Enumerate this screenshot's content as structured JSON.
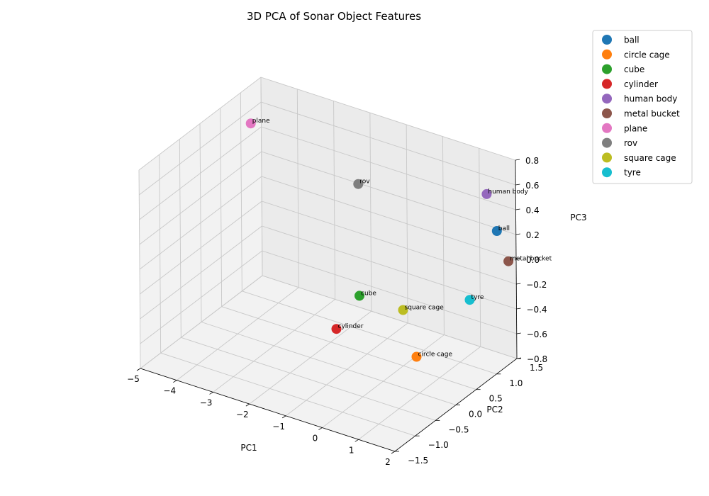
{
  "chart_data": {
    "type": "scatter",
    "projection": "3d",
    "title": "3D PCA of Sonar Object Features",
    "xlabel": "PC1",
    "ylabel": "PC2",
    "zlabel": "PC3",
    "xlim": [
      -5,
      2
    ],
    "ylim": [
      -1.5,
      1.5
    ],
    "zlim": [
      -0.8,
      0.8
    ],
    "xticks": [
      "−5",
      "−4",
      "−3",
      "−2",
      "−1",
      "0",
      "1",
      "2"
    ],
    "yticks": [
      "−1.5",
      "−1.0",
      "−0.5",
      "0.0",
      "0.5",
      "1.0",
      "1.5"
    ],
    "zticks": [
      "−0.8",
      "−0.6",
      "−0.4",
      "−0.2",
      "0.0",
      "0.2",
      "0.4",
      "0.6",
      "0.8"
    ],
    "grid": true,
    "legend_position": "upper right, outside",
    "series": [
      {
        "name": "ball",
        "label": "ball",
        "color": "#1f77b4",
        "x": 1.7,
        "y": 1.3,
        "z": 0.25
      },
      {
        "name": "circle cage",
        "label": "circle cage",
        "color": "#ff7f0e",
        "x": 1.6,
        "y": -0.6,
        "z": -0.3
      },
      {
        "name": "cube",
        "label": "cube",
        "color": "#2ca02c",
        "x": -1.2,
        "y": 0.5,
        "z": -0.35
      },
      {
        "name": "cylinder",
        "label": "cylinder",
        "color": "#d62728",
        "x": 0.3,
        "y": -1.4,
        "z": 0.0
      },
      {
        "name": "human body",
        "label": "human body",
        "color": "#9467bd",
        "x": 1.2,
        "y": 1.5,
        "z": 0.45
      },
      {
        "name": "metal bucket",
        "label": "metal bucket",
        "color": "#8c564b",
        "x": 1.9,
        "y": 1.4,
        "z": 0.0
      },
      {
        "name": "plane",
        "label": "plane",
        "color": "#e377c2",
        "x": -4.5,
        "y": 0.8,
        "z": 0.65
      },
      {
        "name": "rov",
        "label": "rov",
        "color": "#7f7f7f",
        "x": -2.0,
        "y": 1.2,
        "z": 0.3
      },
      {
        "name": "square cage",
        "label": "square cage",
        "color": "#bcbd22",
        "x": 0.0,
        "y": 0.5,
        "z": -0.35
      },
      {
        "name": "tyre",
        "label": "tyre",
        "color": "#17becf",
        "x": 1.5,
        "y": 0.8,
        "z": -0.2
      }
    ]
  }
}
